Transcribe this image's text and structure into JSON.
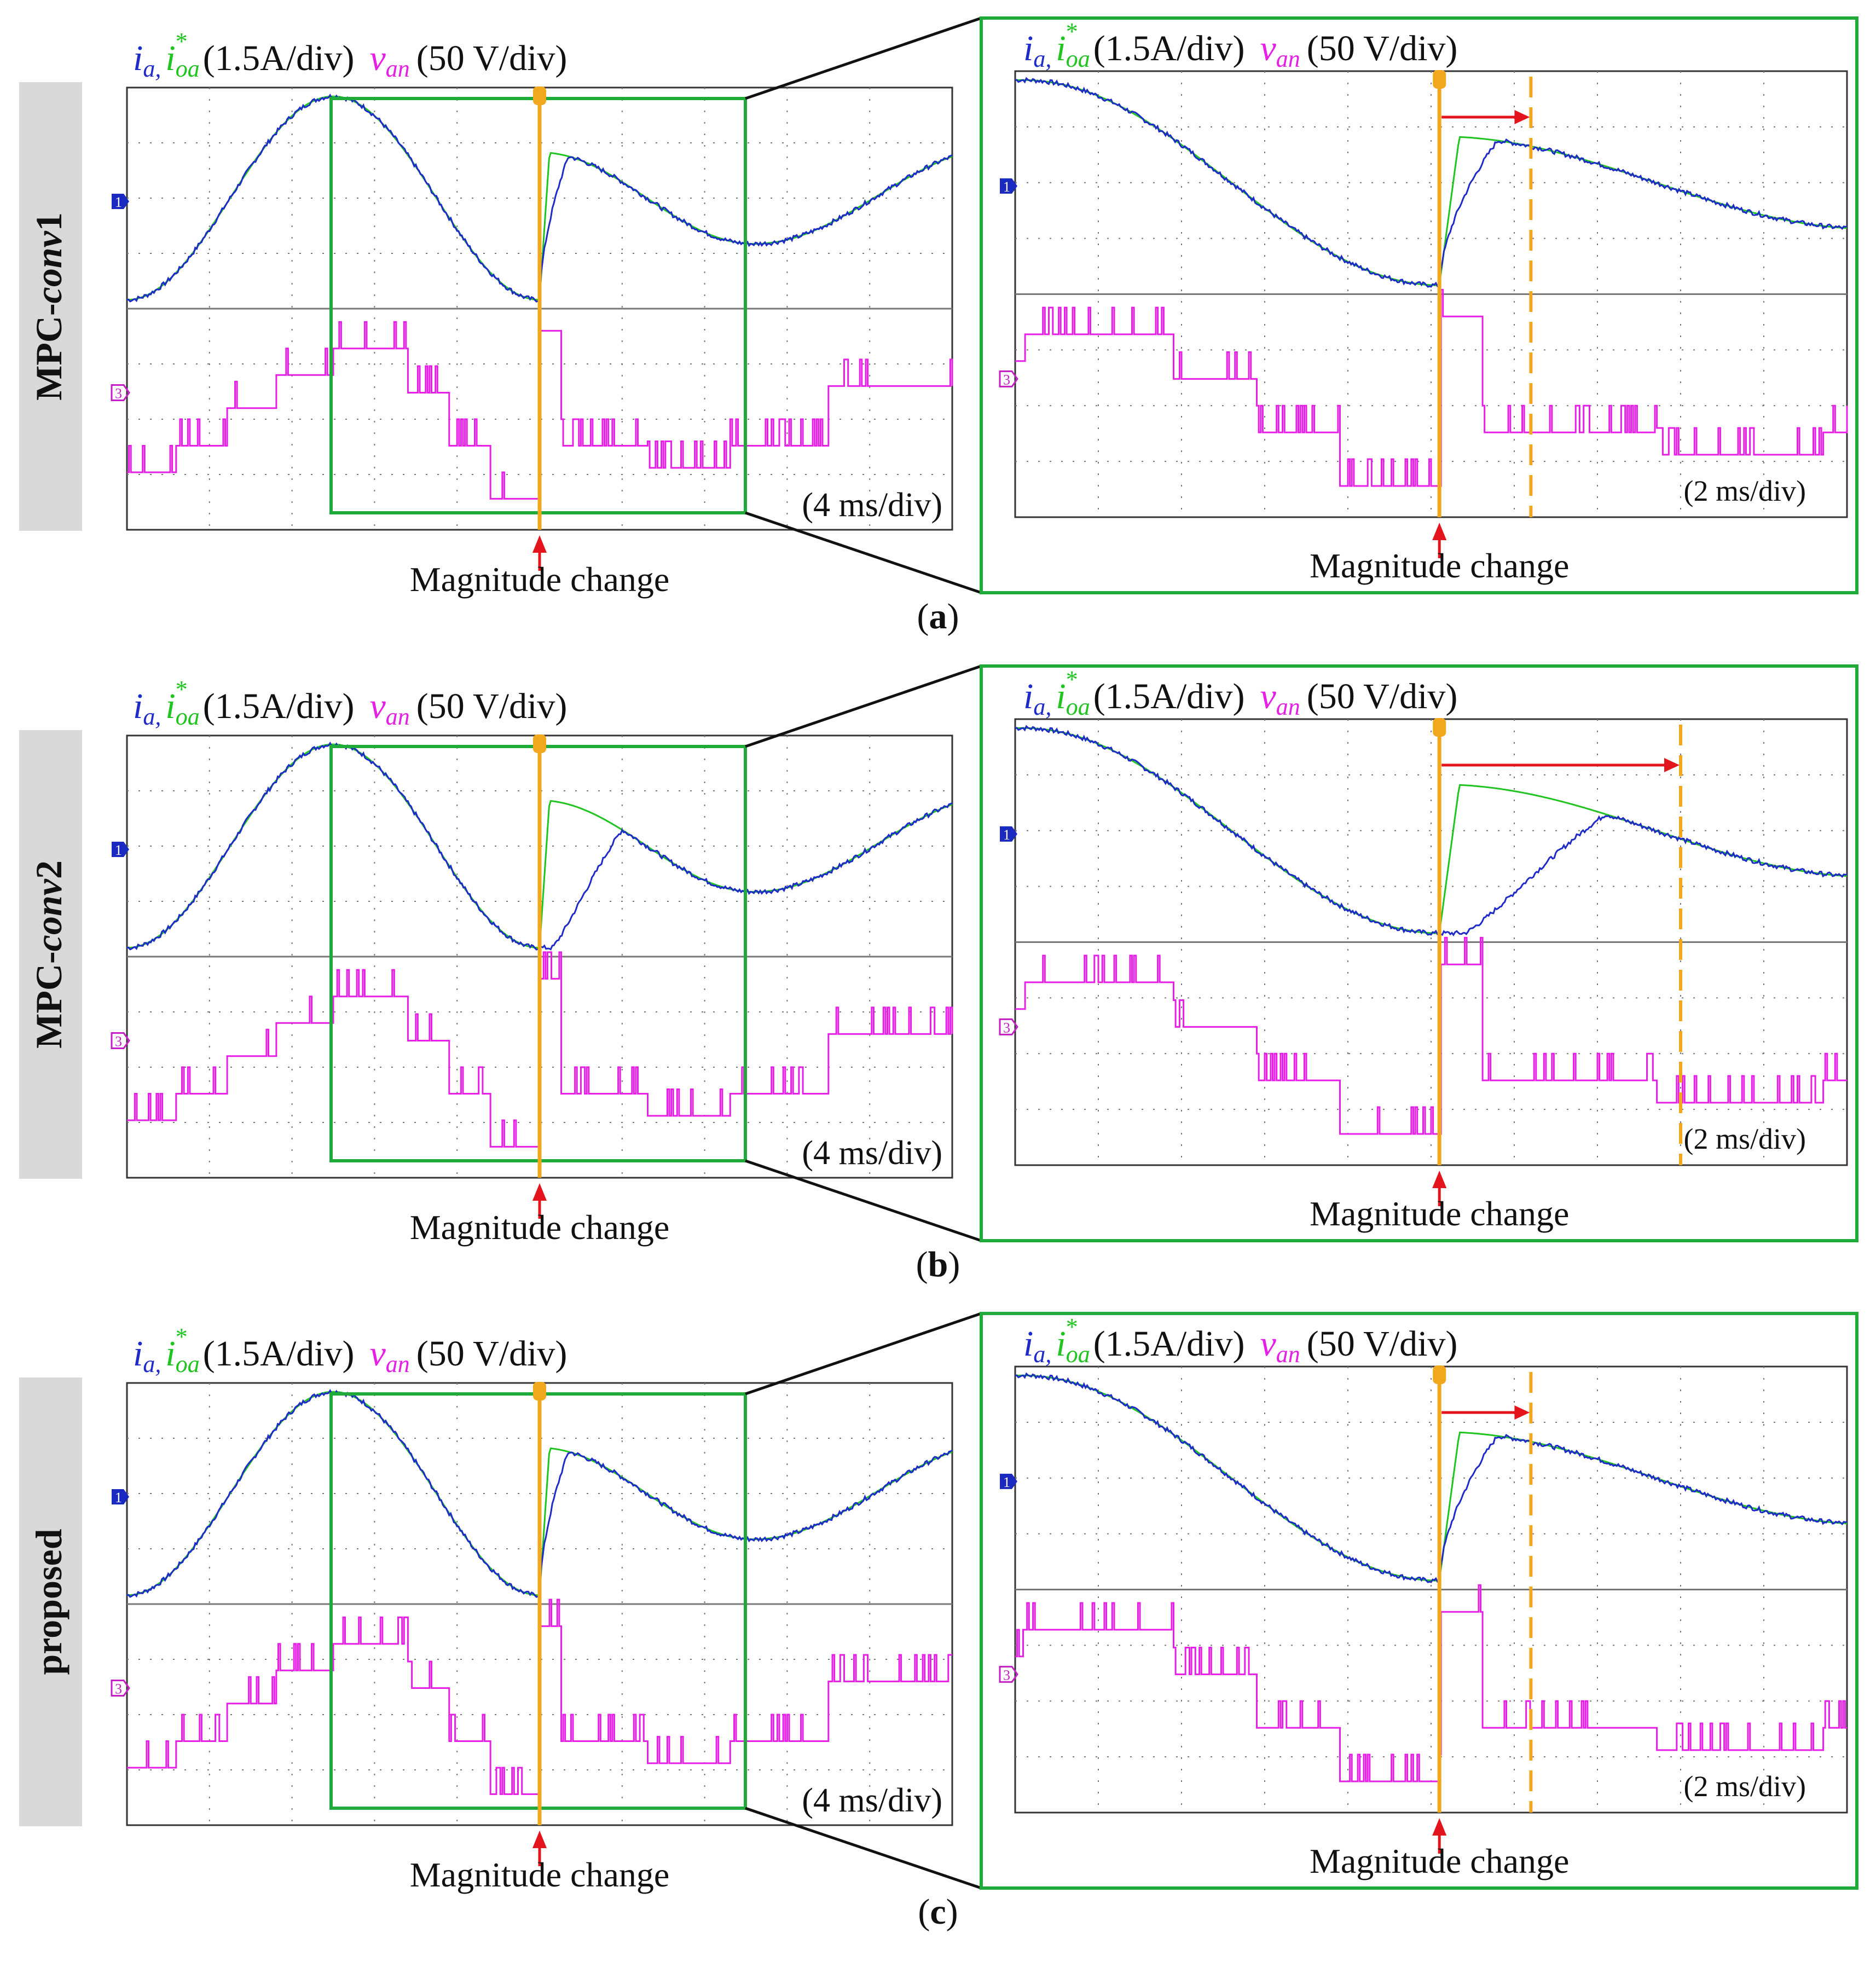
{
  "colors": {
    "ia": "#1f2bc8",
    "ioa": "#1fc41f",
    "van": "#e61ee6",
    "marker": "#f2a81d",
    "arrow": "#e3141b",
    "zoom_box": "#1faa3a",
    "grid": "#777777",
    "side_label_bg": "#d9d9d9"
  },
  "legend": {
    "ia": "i",
    "ia_sub": "a,",
    "ioa": "i",
    "ioa_sub": "oa",
    "ioa_sup": "*",
    "current_scale": "(1.5A/div)",
    "van": "v",
    "van_sub": "an",
    "voltage_scale": "(50 V/div)"
  },
  "channel_markers": {
    "current": "1",
    "voltage": "3"
  },
  "annotation": "Magnitude change",
  "timebase": {
    "full": "(4 ms/div)",
    "zoom": "(2 ms/div)"
  },
  "chart_data": [
    {
      "id": "a",
      "type": "line",
      "panel_label": "(a)",
      "panel_letter": "a",
      "method": "MPC-",
      "method_italic": "conv",
      "method_suffix": "1",
      "x_unit": "div",
      "step_time_div": 5.0,
      "reference": "sine",
      "tracking_delay_div": 0.35,
      "step_transient": "fast",
      "zoom_window_div": [
        2.45,
        7.45
      ],
      "zoom_delay_marker_div": 0.55
    },
    {
      "id": "b",
      "type": "line",
      "panel_label": "(b)",
      "panel_letter": "b",
      "method": "MPC-",
      "method_italic": "conv",
      "method_suffix": "2",
      "x_unit": "div",
      "step_time_div": 5.0,
      "reference": "sine",
      "tracking_delay_div": 1.0,
      "step_transient": "slow",
      "zoom_window_div": [
        2.45,
        7.45
      ],
      "zoom_delay_marker_div": 1.45
    },
    {
      "id": "c",
      "type": "line",
      "panel_label": "(c)",
      "panel_letter": "c",
      "method": "proposed",
      "method_italic": "",
      "method_suffix": "",
      "x_unit": "div",
      "step_time_div": 5.0,
      "reference": "sine",
      "tracking_delay_div": 0.35,
      "step_transient": "fast",
      "zoom_window_div": [
        2.45,
        7.45
      ],
      "zoom_delay_marker_div": 0.55
    }
  ]
}
